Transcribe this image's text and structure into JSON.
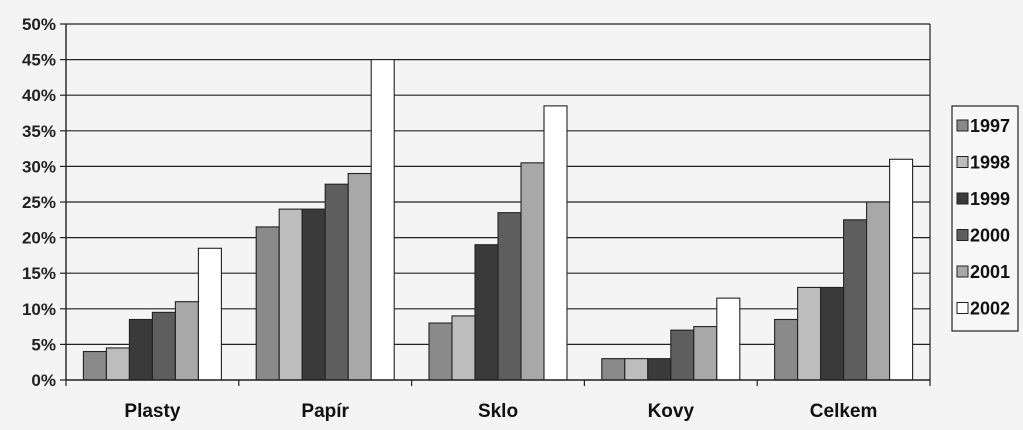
{
  "chart_data": {
    "type": "bar",
    "categories": [
      "Plasty",
      "Papír",
      "Sklo",
      "Kovy",
      "Celkem"
    ],
    "series": [
      {
        "name": "1997",
        "color": "#8a8a8a",
        "values": [
          4,
          21.5,
          8,
          3,
          8.5
        ]
      },
      {
        "name": "1998",
        "color": "#bdbdbd",
        "values": [
          4.5,
          24,
          9,
          3,
          13
        ]
      },
      {
        "name": "1999",
        "color": "#3a3a3a",
        "values": [
          8.5,
          24,
          19,
          3,
          13
        ]
      },
      {
        "name": "2000",
        "color": "#5e5e5e",
        "values": [
          9.5,
          27.5,
          23.5,
          7,
          22.5
        ]
      },
      {
        "name": "2001",
        "color": "#a8a8a8",
        "values": [
          11,
          29,
          30.5,
          7.5,
          25
        ]
      },
      {
        "name": "2002",
        "color": "#ffffff",
        "values": [
          18.5,
          45,
          38.5,
          11.5,
          31
        ]
      }
    ],
    "yticks": [
      "0%",
      "5%",
      "10%",
      "15%",
      "20%",
      "25%",
      "30%",
      "35%",
      "40%",
      "45%",
      "50%"
    ],
    "ylim": [
      0,
      50
    ],
    "grid": true,
    "legend": "right"
  }
}
